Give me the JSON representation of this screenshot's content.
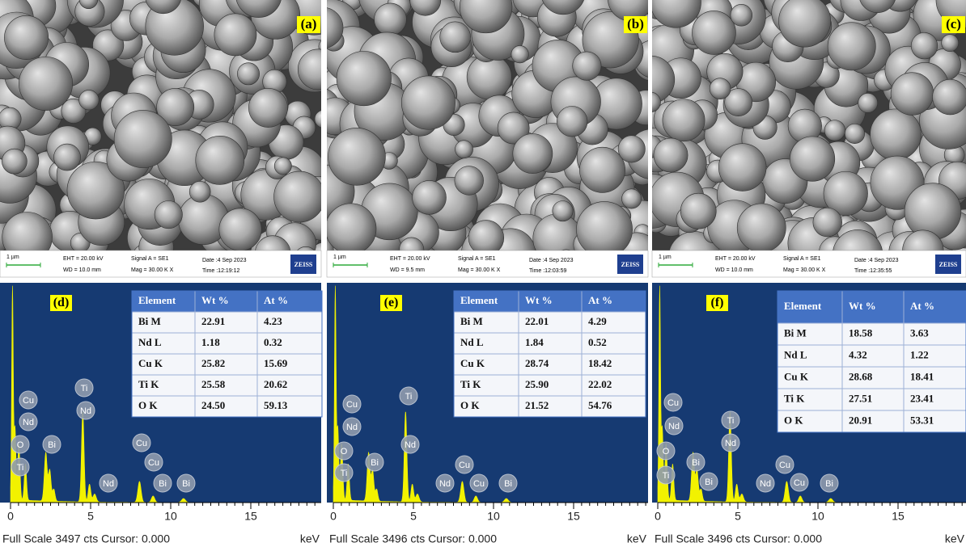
{
  "sem_panels": [
    {
      "label": "(a)",
      "scale": "1 µm",
      "eht": "EHT = 20.00 kV",
      "wd": "WD = 10.0 mm",
      "signal": "Signal A = SE1",
      "mag": "Mag =  30.00 K X",
      "date": "Date :4 Sep 2023",
      "time": "Time :12:19:12",
      "logo": "ZEISS"
    },
    {
      "label": "(b)",
      "scale": "1 µm",
      "eht": "EHT = 20.00 kV",
      "wd": "WD = 9.5 mm",
      "signal": "Signal A = SE1",
      "mag": "Mag =  30.00 K X",
      "date": "Date :4 Sep 2023",
      "time": "Time :12:03:59",
      "logo": "ZEISS"
    },
    {
      "label": "(c)",
      "scale": "1 µm",
      "eht": "EHT = 20.00 kV",
      "wd": "WD = 10.0 mm",
      "signal": "Signal A = SE1",
      "mag": "Mag =  30.00 K X",
      "date": "Date :4 Sep 2023",
      "time": "Time :12:35:55",
      "logo": "ZEISS"
    }
  ],
  "eds_panels": [
    {
      "label": "(d)",
      "table": {
        "header": [
          "Element",
          "Wt %",
          "At %"
        ],
        "rows": [
          [
            "Bi M",
            "22.91",
            "4.23"
          ],
          [
            "Nd L",
            "1.18",
            "0.32"
          ],
          [
            "Cu K",
            "25.82",
            "15.69"
          ],
          [
            "Ti K",
            "25.58",
            "20.62"
          ],
          [
            "O K",
            "24.50",
            "59.13"
          ]
        ]
      },
      "peaks": [
        "Cu",
        "Nd",
        "O",
        "Ti",
        "Bi",
        "Ti",
        "Nd",
        "Cu",
        "Cu",
        "Nd",
        "Bi",
        "Bi"
      ],
      "axis_ticks": [
        "0",
        "5",
        "10",
        "15"
      ],
      "unit": "keV",
      "footer": "Full Scale 3497 cts Cursor: 0.000"
    },
    {
      "label": "(e)",
      "table": {
        "header": [
          "Element",
          "Wt %",
          "At %"
        ],
        "rows": [
          [
            "Bi M",
            "22.01",
            "4.29"
          ],
          [
            "Nd L",
            "1.84",
            "0.52"
          ],
          [
            "Cu K",
            "28.74",
            "18.42"
          ],
          [
            "Ti K",
            "25.90",
            "22.02"
          ],
          [
            "O K",
            "21.52",
            "54.76"
          ]
        ]
      },
      "peaks": [
        "Cu",
        "Nd",
        "O",
        "Ti",
        "Bi",
        "Ti",
        "Nd",
        "Nd",
        "Cu",
        "Cu",
        "Bi"
      ],
      "axis_ticks": [
        "0",
        "5",
        "10",
        "15"
      ],
      "unit": "keV",
      "footer": "Full Scale 3496 cts Cursor: 0.000"
    },
    {
      "label": "(f)",
      "table": {
        "header": [
          "Element",
          "Wt %",
          "At %"
        ],
        "rows": [
          [
            "Bi M",
            "18.58",
            "3.63"
          ],
          [
            "Nd L",
            "4.32",
            "1.22"
          ],
          [
            "Cu K",
            "28.68",
            "18.41"
          ],
          [
            "Ti K",
            "27.51",
            "23.41"
          ],
          [
            "O K",
            "20.91",
            "53.31"
          ]
        ]
      },
      "peaks": [
        "Cu",
        "Nd",
        "O",
        "Ti",
        "Bi",
        "Bi",
        "Ti",
        "Nd",
        "Nd",
        "Cu",
        "Cu",
        "Bi"
      ],
      "axis_ticks": [
        "0",
        "5",
        "10",
        "15"
      ],
      "unit": "keV",
      "footer": "Full Scale 3496 cts Cursor: 0.000"
    }
  ]
}
